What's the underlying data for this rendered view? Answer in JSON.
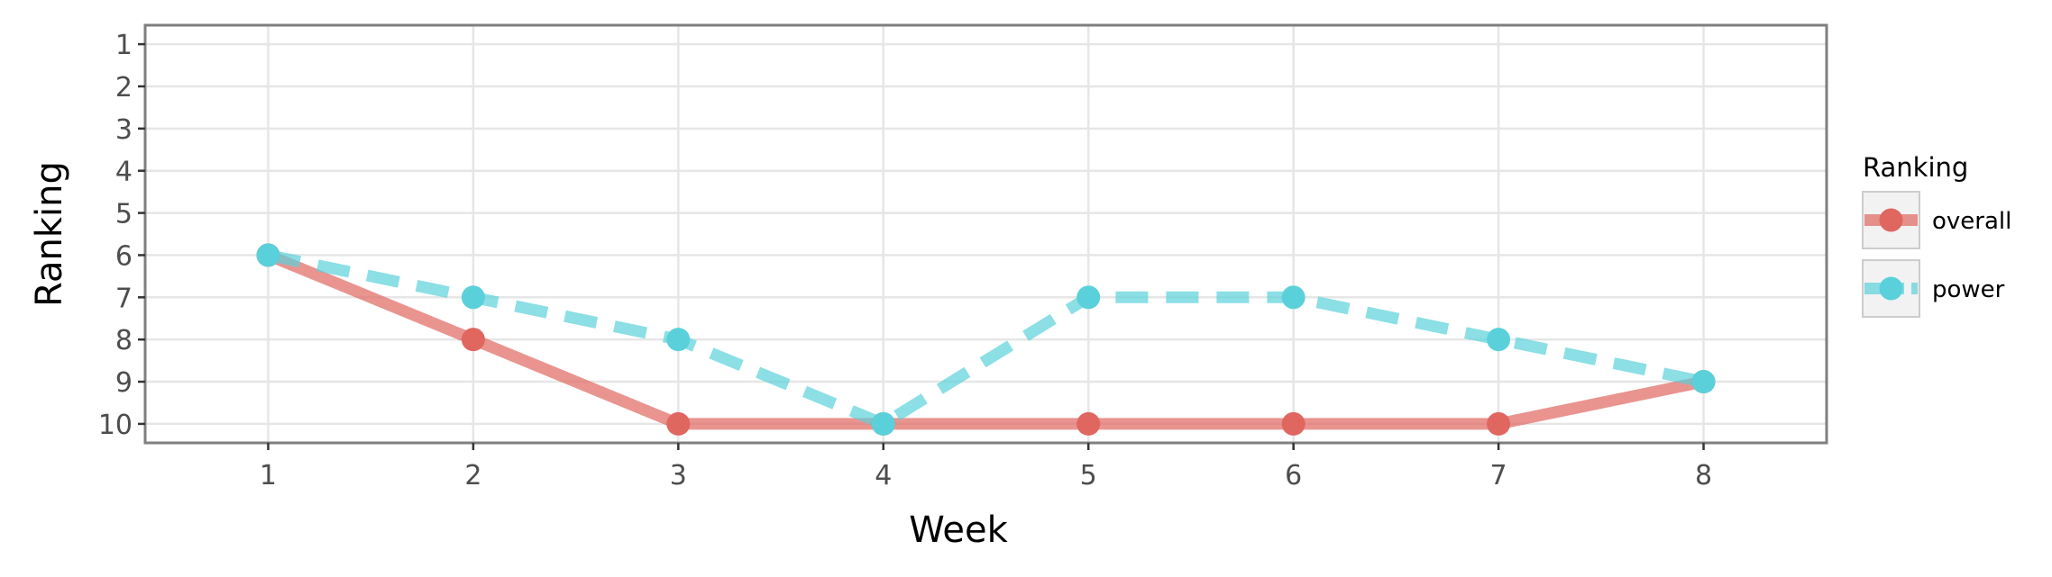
{
  "chart_data": {
    "type": "line",
    "xlabel": "Week",
    "ylabel": "Ranking",
    "x": [
      1,
      2,
      3,
      4,
      5,
      6,
      7,
      8
    ],
    "xticks": [
      "1",
      "2",
      "3",
      "4",
      "5",
      "6",
      "7",
      "8"
    ],
    "yticks": [
      "1",
      "2",
      "3",
      "4",
      "5",
      "6",
      "7",
      "8",
      "9",
      "10"
    ],
    "xlim": [
      0.4,
      8.6
    ],
    "ylim": [
      10.45,
      0.55
    ],
    "y_reversed": true,
    "grid": true,
    "legend": {
      "title": "Ranking",
      "position": "right"
    },
    "series": [
      {
        "name": "overall",
        "values": [
          6,
          8,
          10,
          10,
          10,
          10,
          10,
          9
        ],
        "color": "#e06660",
        "line_style": "solid"
      },
      {
        "name": "power",
        "values": [
          6,
          7,
          8,
          10,
          7,
          7,
          8,
          9
        ],
        "color": "#5ad1da",
        "line_style": "dashed"
      }
    ]
  }
}
